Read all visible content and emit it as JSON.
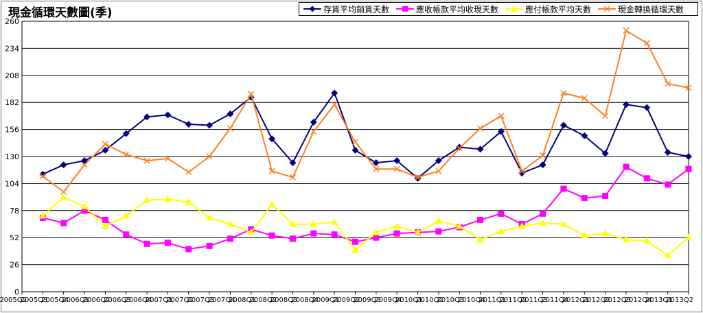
{
  "chart_data": {
    "type": "line",
    "title": "現金循環天數圖(季)",
    "categories": [
      "2005Q2",
      "2005Q3",
      "2005Q4",
      "2006Q1",
      "2006Q2",
      "2006Q3",
      "2006Q4",
      "2007Q1",
      "2007Q2",
      "2007Q3",
      "2007Q4",
      "2008Q1",
      "2008Q2",
      "2008Q3",
      "2008Q4",
      "2009Q1",
      "2009Q2",
      "2009Q3",
      "2009Q4",
      "2010Q1",
      "2010Q2",
      "2010Q3",
      "2010Q4",
      "2011Q1",
      "2011Q2",
      "2011Q3",
      "2011Q4",
      "2012Q1",
      "2012Q2",
      "2012Q3",
      "2012Q4",
      "2013Q1",
      "2013Q2"
    ],
    "ylim": [
      0,
      260
    ],
    "yticks": [
      0,
      26,
      52,
      78,
      104,
      130,
      156,
      182,
      208,
      234,
      260
    ],
    "grid": true,
    "legend_position": "top",
    "series": [
      {
        "name": "存貨平均銷貨天數",
        "color": "#000080",
        "marker": "diamond",
        "values": [
          null,
          113,
          122,
          126,
          136,
          152,
          168,
          170,
          161,
          160,
          171,
          187,
          147,
          124,
          163,
          191,
          136,
          124,
          126,
          109,
          126,
          139,
          137,
          154,
          114,
          122,
          160,
          150,
          133,
          180,
          177,
          134,
          130
        ]
      },
      {
        "name": "應收帳款平均收現天數",
        "color": "#ff00ff",
        "marker": "square",
        "values": [
          null,
          71,
          66,
          78,
          69,
          55,
          46,
          47,
          41,
          44,
          51,
          60,
          54,
          51,
          56,
          55,
          48,
          52,
          56,
          57,
          58,
          62,
          69,
          75,
          65,
          75,
          99,
          90,
          92,
          120,
          109,
          103,
          118
        ]
      },
      {
        "name": "應付帳款平均天數",
        "color": "#ffff00",
        "marker": "triangle",
        "values": [
          null,
          73,
          91,
          82,
          63,
          73,
          88,
          89,
          86,
          71,
          65,
          57,
          84,
          65,
          65,
          67,
          40,
          57,
          63,
          57,
          68,
          63,
          50,
          58,
          63,
          66,
          65,
          54,
          56,
          50,
          49,
          35,
          52
        ]
      },
      {
        "name": "現金轉換循環天數",
        "color": "#ff7f1f",
        "marker": "x",
        "values": [
          null,
          111,
          96,
          122,
          142,
          132,
          126,
          128,
          115,
          130,
          157,
          190,
          116,
          110,
          154,
          180,
          144,
          118,
          118,
          110,
          116,
          138,
          157,
          169,
          116,
          131,
          191,
          186,
          169,
          251,
          239,
          200,
          196
        ]
      }
    ]
  }
}
